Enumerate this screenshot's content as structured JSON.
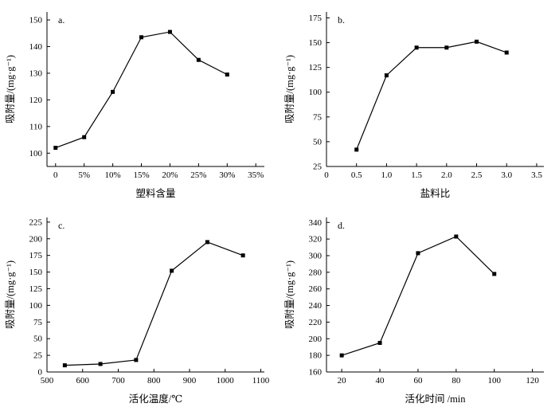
{
  "figure": {
    "background": "#ffffff",
    "line_color": "#000000",
    "marker": "square"
  },
  "chart_data": [
    {
      "id": "a",
      "type": "line",
      "panel_label": "a.",
      "xlabel": "塑料含量",
      "ylabel": "吸附量/(mg·g⁻¹)",
      "x": [
        0,
        5,
        10,
        15,
        20,
        25,
        30
      ],
      "y": [
        102,
        106,
        123,
        143.5,
        145.5,
        135,
        129.5
      ],
      "xlim": [
        -1.5,
        36.5
      ],
      "ylim": [
        95,
        153
      ],
      "xticks": [
        0,
        5,
        10,
        15,
        20,
        25,
        30,
        35
      ],
      "xtick_labels": [
        "0",
        "5%",
        "10%",
        "15%",
        "20%",
        "25%",
        "30%",
        "35%"
      ],
      "yticks": [
        100,
        110,
        120,
        130,
        140,
        150
      ],
      "ytick_labels": [
        "100",
        "110",
        "120",
        "130",
        "140",
        "150"
      ],
      "grid": false,
      "legend": null
    },
    {
      "id": "b",
      "type": "line",
      "panel_label": "b.",
      "xlabel": "盐料比",
      "ylabel": "吸附量/(mg·g⁻¹)",
      "x": [
        0.5,
        1.0,
        1.5,
        2.0,
        2.5,
        3.0
      ],
      "y": [
        42,
        117,
        145,
        145,
        151,
        140
      ],
      "xlim": [
        0,
        3.62
      ],
      "ylim": [
        25,
        181
      ],
      "xticks": [
        0,
        0.5,
        1.0,
        1.5,
        2.0,
        2.5,
        3.0,
        3.5
      ],
      "xtick_labels": [
        "0",
        "0.5",
        "1.0",
        "1.5",
        "2.0",
        "2.5",
        "3.0",
        "3.5"
      ],
      "yticks": [
        25,
        50,
        75,
        100,
        125,
        150,
        175
      ],
      "ytick_labels": [
        "25",
        "50",
        "75",
        "100",
        "125",
        "150",
        "175"
      ],
      "grid": false,
      "legend": null
    },
    {
      "id": "c",
      "type": "line",
      "panel_label": "c.",
      "xlabel": "活化温度/℃",
      "ylabel": "吸附量/(mg·g⁻¹)",
      "x": [
        550,
        650,
        750,
        850,
        950,
        1050
      ],
      "y": [
        10,
        12,
        18,
        152,
        195,
        175
      ],
      "xlim": [
        500,
        1110
      ],
      "ylim": [
        0,
        232
      ],
      "xticks": [
        500,
        600,
        700,
        800,
        900,
        1000,
        1100
      ],
      "xtick_labels": [
        "500",
        "600",
        "700",
        "800",
        "900",
        "1000",
        "1100"
      ],
      "yticks": [
        0,
        25,
        50,
        75,
        100,
        125,
        150,
        175,
        200,
        225
      ],
      "ytick_labels": [
        "0",
        "25",
        "50",
        "75",
        "100",
        "125",
        "150",
        "175",
        "200",
        "225"
      ],
      "grid": false,
      "legend": null
    },
    {
      "id": "d",
      "type": "line",
      "panel_label": "d.",
      "xlabel": "活化时间 /min",
      "ylabel": "吸附量/(mg·g⁻¹)",
      "x": [
        20,
        40,
        60,
        80,
        100
      ],
      "y": [
        180,
        195,
        303,
        323,
        278
      ],
      "xlim": [
        12,
        126
      ],
      "ylim": [
        160,
        346
      ],
      "xticks": [
        20,
        40,
        60,
        80,
        100,
        120
      ],
      "xtick_labels": [
        "20",
        "40",
        "60",
        "80",
        "100",
        "120"
      ],
      "yticks": [
        160,
        180,
        200,
        220,
        240,
        260,
        280,
        300,
        320,
        340
      ],
      "ytick_labels": [
        "160",
        "180",
        "200",
        "220",
        "240",
        "260",
        "280",
        "300",
        "320",
        "340"
      ],
      "grid": false,
      "legend": null
    }
  ]
}
